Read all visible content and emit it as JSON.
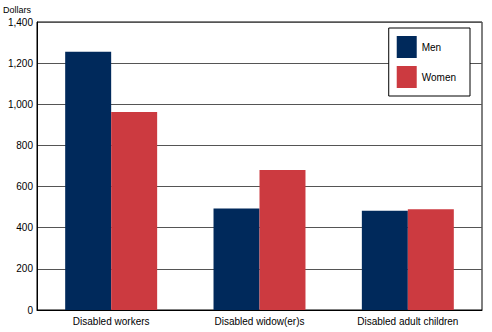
{
  "chart_data": {
    "type": "bar",
    "ylabel": "Dollars",
    "categories": [
      "Disabled workers",
      "Disabled widow(er)s",
      "Disabled adult children"
    ],
    "series": [
      {
        "name": "Men",
        "color": "#00295b",
        "values": [
          1255,
          493,
          482
        ]
      },
      {
        "name": "Women",
        "color": "#cc3a40",
        "values": [
          962,
          680,
          490
        ]
      }
    ],
    "ylim": [
      0,
      1400
    ],
    "yticks": [
      0,
      200,
      400,
      600,
      800,
      {
        "value": 1000,
        "label": "1,000"
      },
      {
        "value": 1200,
        "label": "1,200"
      },
      {
        "value": 1400,
        "label": "1,400"
      }
    ],
    "grid": true,
    "legend": "upper right"
  }
}
